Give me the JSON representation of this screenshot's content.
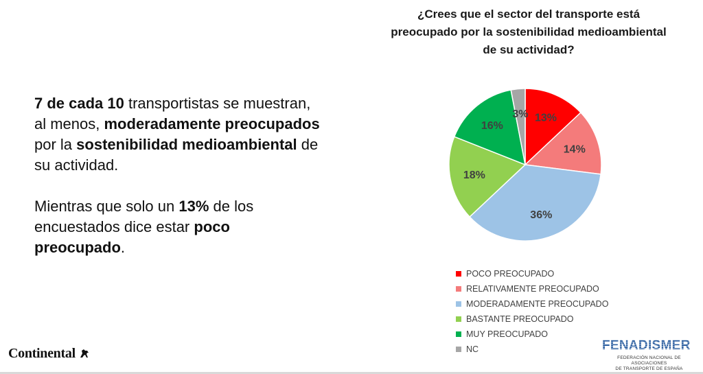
{
  "chart_data": {
    "type": "pie",
    "title": "¿Crees que el sector del transporte está preocupado por la sostenibilidad medioambiental de su actividad?",
    "slices": [
      {
        "label": "POCO PREOCUPADO",
        "value": 13,
        "display": "13%",
        "color": "#ff0000"
      },
      {
        "label": "RELATIVAMENTE PREOCUPADO",
        "value": 14,
        "display": "14%",
        "color": "#f47b7b"
      },
      {
        "label": "MODERADAMENTE PREOCUPADO",
        "value": 36,
        "display": "36%",
        "color": "#9dc3e6"
      },
      {
        "label": "BASTANTE PREOCUPADO",
        "value": 18,
        "display": "18%",
        "color": "#92d050"
      },
      {
        "label": "MUY PREOCUPADO",
        "value": 16,
        "display": "16%",
        "color": "#00b050"
      },
      {
        "label": "NC",
        "value": 3,
        "display": "3%",
        "color": "#a6a6a6"
      }
    ],
    "legend_position": "bottom",
    "start": "top, clockwise",
    "label_color": "#404040"
  },
  "text": {
    "p1": {
      "b1": "7 de cada 10",
      "t1": " transportistas se muestran, al menos, ",
      "b2": "moderadamente preocupados",
      "t2": " por la ",
      "b3": "sostenibilidad medioambiental",
      "t3": " de su actividad."
    },
    "p2": {
      "t1": "Mientras que solo un ",
      "b1": "13%",
      "t2": " de los encuestados dice estar ",
      "b2": "poco preocupado",
      "t3": "."
    }
  },
  "logos": {
    "continental": "Continental",
    "fenadismer": "FENADISMER",
    "fenadismer_sub_1": "FEDERACIÓN NACIONAL DE ASOCIACIONES",
    "fenadismer_sub_2": "DE TRANSPORTE DE ESPAÑA"
  }
}
